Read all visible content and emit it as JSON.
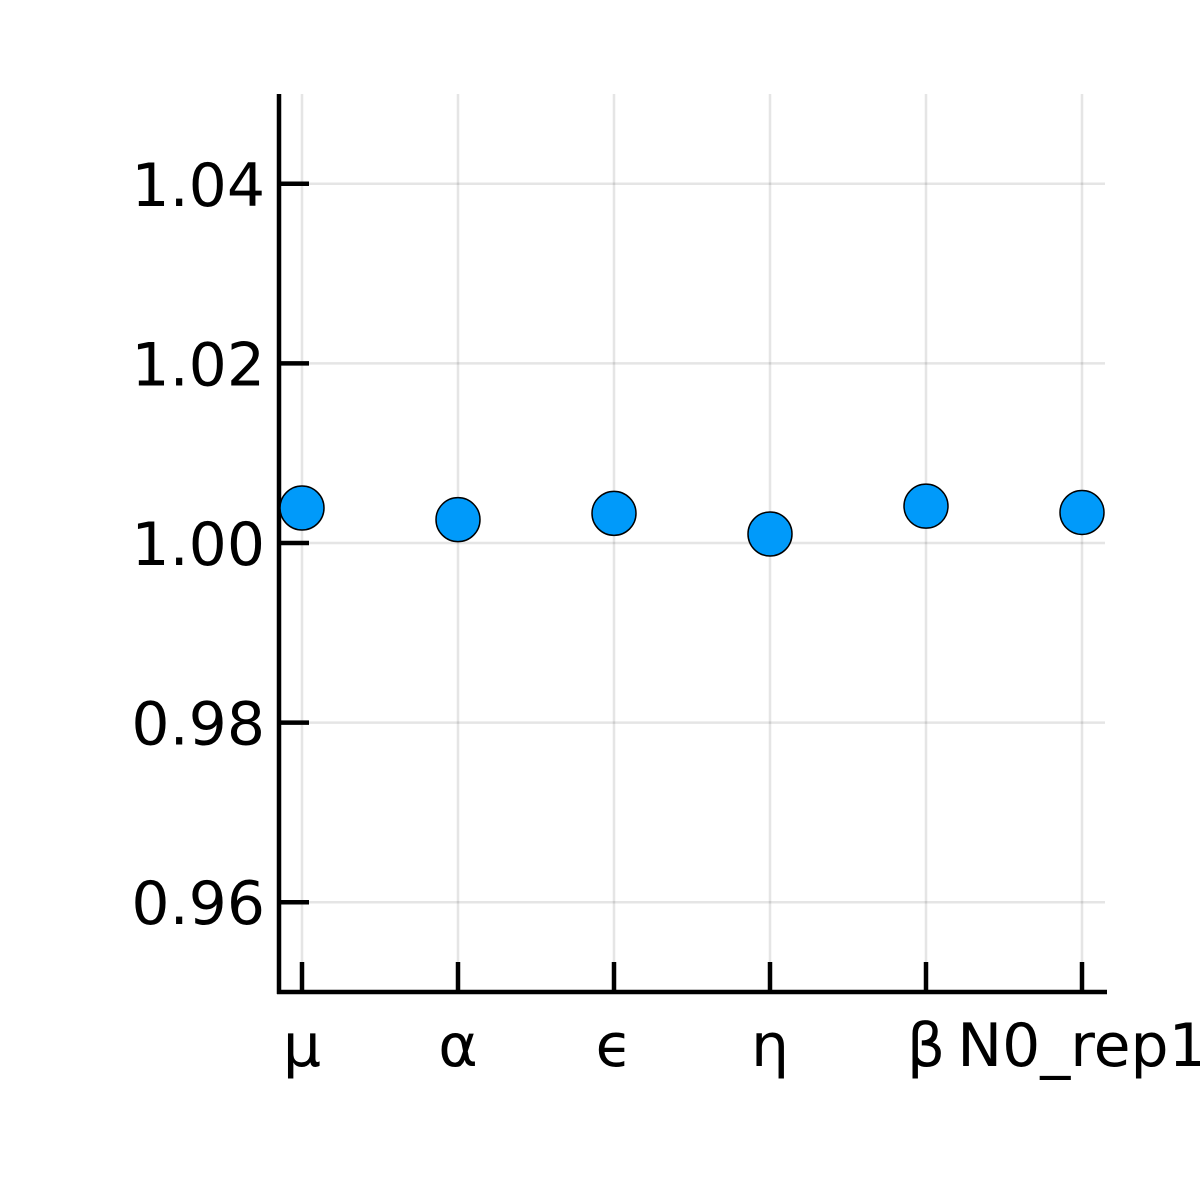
{
  "chart_data": {
    "type": "scatter",
    "title": "",
    "xlabel": "",
    "ylabel": "",
    "categories": [
      "μ",
      "α",
      "ϵ",
      "η",
      "β",
      "N0_rep1"
    ],
    "series": [
      {
        "values": [
          1.0039,
          1.0026,
          1.0033,
          1.001,
          1.0041,
          1.0034
        ],
        "color": "#009AFA"
      }
    ],
    "ylim": [
      0.95,
      1.05
    ],
    "yticks": [
      0.96,
      0.98,
      1.0,
      1.02,
      1.04
    ],
    "ytick_labels": [
      "0.96",
      "0.98",
      "1.00",
      "1.02",
      "1.04"
    ],
    "grid": true,
    "legend": "none"
  }
}
